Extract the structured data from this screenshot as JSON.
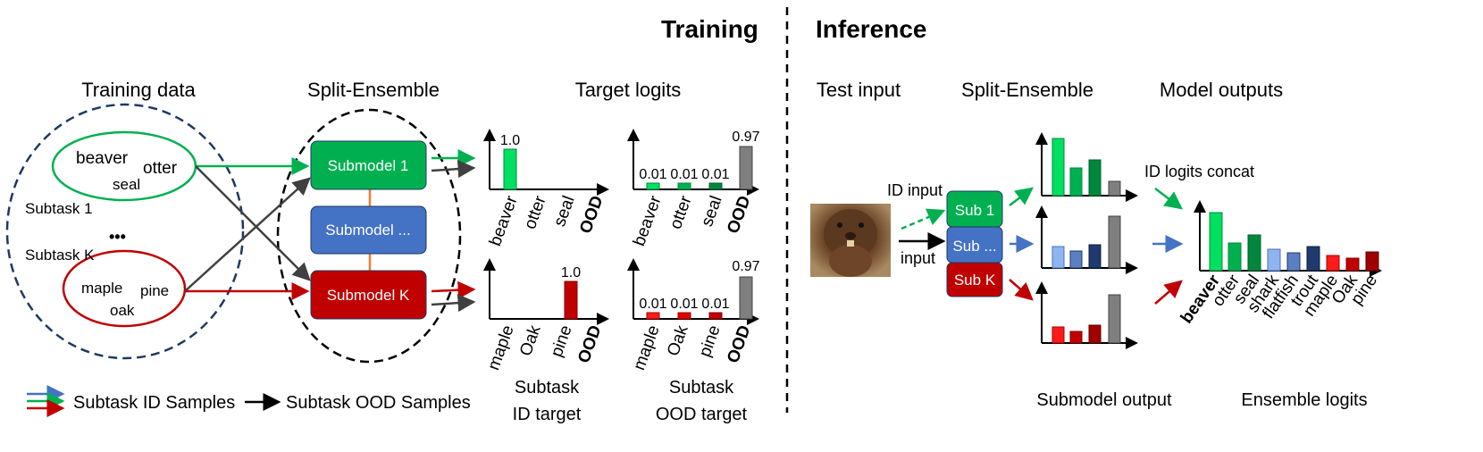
{
  "headers": {
    "training": "Training",
    "inference": "Inference"
  },
  "sections": {
    "training_data": "Training data",
    "split_ensemble": "Split-Ensemble",
    "target_logits": "Target logits",
    "test_input": "Test input",
    "split_ensemble_inf": "Split-Ensemble",
    "model_outputs": "Model outputs"
  },
  "training_data": {
    "subtask1_label": "Subtask 1",
    "subtaskK_label": "Subtask K",
    "ellipsis": "•••",
    "set1": [
      "beaver",
      "otter",
      "seal"
    ],
    "setK": [
      "maple",
      "pine",
      "oak"
    ]
  },
  "submodels": {
    "m1": "Submodel 1",
    "mdots": "Submodel ...",
    "mK": "Submodel K"
  },
  "id_target_1": {
    "values": [
      "1.0"
    ],
    "labels": [
      "beaver",
      "otter",
      "seal",
      "OOD"
    ]
  },
  "ood_target_1": {
    "values": [
      "0.01",
      "0.01",
      "0.01",
      "0.97"
    ],
    "labels": [
      "beaver",
      "otter",
      "seal",
      "OOD"
    ]
  },
  "id_target_K": {
    "values": [
      "1.0"
    ],
    "labels": [
      "maple",
      "Oak",
      "pine",
      "OOD"
    ]
  },
  "ood_target_K": {
    "values": [
      "0.01",
      "0.01",
      "0.01",
      "0.97"
    ],
    "labels": [
      "maple",
      "Oak",
      "pine",
      "OOD"
    ]
  },
  "captions": {
    "id_target_l1": "Subtask",
    "id_target_l2": "ID target",
    "ood_target_l1": "Subtask",
    "ood_target_l2": "OOD target",
    "submodel_output": "Submodel output",
    "ensemble_logits": "Ensemble logits"
  },
  "legend": {
    "id_samples": "Subtask ID Samples",
    "ood_samples": "Subtask OOD Samples"
  },
  "inference": {
    "id_input": "ID input",
    "input": "input",
    "sub1": "Sub 1",
    "subdots": "Sub ...",
    "subK": "Sub K",
    "concat": "ID logits concat",
    "ensemble_labels": [
      "beaver",
      "otter",
      "seal",
      "shark",
      "flatfish",
      "trout",
      "maple",
      "Oak",
      "pine"
    ]
  },
  "colors": {
    "green": "#00b050",
    "green_light": "#00e060",
    "green_dark": "#00873c",
    "blue": "#4472c4",
    "blue_light": "#8fb4f0",
    "blue_mid": "#5b7fc0",
    "blue_dark": "#1f3a6e",
    "red": "#c00000",
    "red_light": "#ff1a1a",
    "red_dark": "#a00000",
    "gray": "#7f7f7f",
    "navy": "#1f3864"
  }
}
